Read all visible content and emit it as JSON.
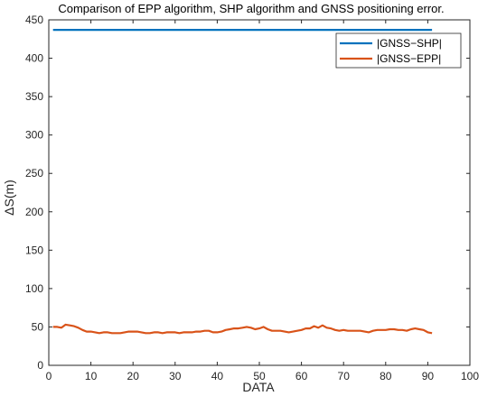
{
  "chart_data": {
    "type": "line",
    "title": "Comparison of EPP algorithm, SHP algorithm and GNSS positioning error.",
    "xlabel": "DATA",
    "ylabel": "ΔS(m)",
    "xlim": [
      0,
      100
    ],
    "ylim": [
      0,
      450
    ],
    "xticks": [
      "0",
      "10",
      "20",
      "30",
      "40",
      "50",
      "60",
      "70",
      "80",
      "90",
      "100"
    ],
    "yticks": [
      "0",
      "50",
      "100",
      "150",
      "200",
      "250",
      "300",
      "350",
      "400",
      "450"
    ],
    "grid": false,
    "legend_position": "top-right",
    "series": [
      {
        "name": "|GNSS−SHP|",
        "color": "#0072BD",
        "x": [
          1,
          91
        ],
        "y": [
          437,
          437
        ]
      },
      {
        "name": "|GNSS−EPP|",
        "color": "#D95319",
        "x": [
          1,
          2,
          3,
          4,
          5,
          6,
          7,
          8,
          9,
          10,
          11,
          12,
          13,
          14,
          15,
          16,
          17,
          18,
          19,
          20,
          21,
          22,
          23,
          24,
          25,
          26,
          27,
          28,
          29,
          30,
          31,
          32,
          33,
          34,
          35,
          36,
          37,
          38,
          39,
          40,
          41,
          42,
          43,
          44,
          45,
          46,
          47,
          48,
          49,
          50,
          51,
          52,
          53,
          54,
          55,
          56,
          57,
          58,
          59,
          60,
          61,
          62,
          63,
          64,
          65,
          66,
          67,
          68,
          69,
          70,
          71,
          72,
          73,
          74,
          75,
          76,
          77,
          78,
          79,
          80,
          81,
          82,
          83,
          84,
          85,
          86,
          87,
          88,
          89,
          90,
          91
        ],
        "y": [
          50,
          50,
          49,
          53,
          52,
          51,
          49,
          46,
          44,
          44,
          43,
          42,
          43,
          43,
          42,
          42,
          42,
          43,
          44,
          44,
          44,
          43,
          42,
          42,
          43,
          43,
          42,
          43,
          43,
          43,
          42,
          43,
          43,
          43,
          44,
          44,
          45,
          45,
          43,
          43,
          44,
          46,
          47,
          48,
          48,
          49,
          50,
          49,
          47,
          48,
          50,
          47,
          45,
          45,
          45,
          44,
          43,
          44,
          45,
          46,
          48,
          48,
          51,
          49,
          52,
          49,
          48,
          46,
          45,
          46,
          45,
          45,
          45,
          45,
          44,
          43,
          45,
          46,
          46,
          46,
          47,
          47,
          46,
          46,
          45,
          47,
          48,
          47,
          46,
          43,
          42
        ]
      }
    ]
  }
}
